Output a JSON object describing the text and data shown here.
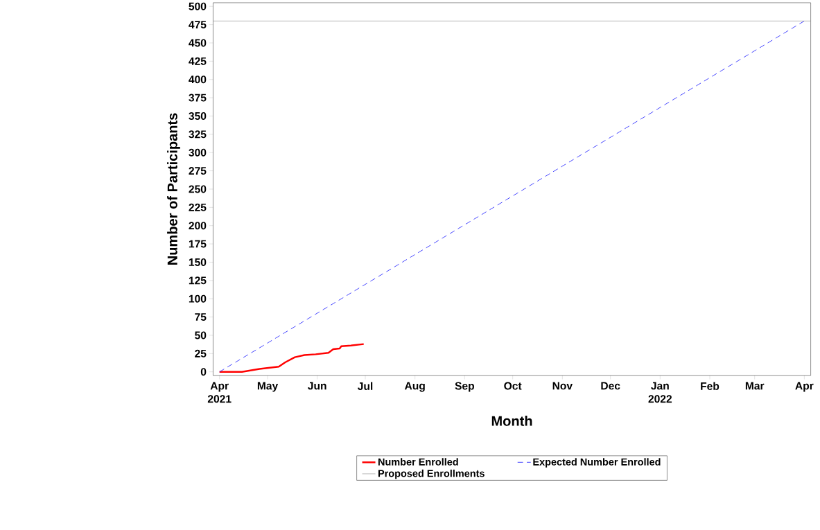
{
  "chart_data": {
    "type": "line",
    "xlabel": "Month",
    "ylabel": "Number of Participants",
    "xlim": [
      "2021-03-28",
      "2022-04-05"
    ],
    "ylim": [
      -5,
      505
    ],
    "xticks": [
      {
        "value": "2021-04-01",
        "label": "Apr 2021"
      },
      {
        "value": "2021-05-01",
        "label": "May"
      },
      {
        "value": "2021-06-01",
        "label": "Jun"
      },
      {
        "value": "2021-07-01",
        "label": "Jul"
      },
      {
        "value": "2021-08-01",
        "label": "Aug"
      },
      {
        "value": "2021-09-01",
        "label": "Sep"
      },
      {
        "value": "2021-10-01",
        "label": "Oct"
      },
      {
        "value": "2021-11-01",
        "label": "Nov"
      },
      {
        "value": "2021-12-01",
        "label": "Dec"
      },
      {
        "value": "2022-01-01",
        "label": "Jan 2022"
      },
      {
        "value": "2022-02-01",
        "label": "Feb"
      },
      {
        "value": "2022-03-01",
        "label": "Mar"
      },
      {
        "value": "2022-04-01",
        "label": "Apr"
      }
    ],
    "yticks": [
      0,
      25,
      50,
      75,
      100,
      125,
      150,
      175,
      200,
      225,
      250,
      275,
      300,
      325,
      350,
      375,
      400,
      425,
      450,
      475,
      500
    ],
    "grid": false,
    "legend": "bottom",
    "marker": "none",
    "series": [
      {
        "name": "Number Enrolled",
        "color": "#ff0000",
        "line_style": "solid",
        "x": [
          "2021-04-01",
          "2021-04-15",
          "2021-04-26",
          "2021-05-08",
          "2021-05-12",
          "2021-05-18",
          "2021-05-24",
          "2021-05-31",
          "2021-06-08",
          "2021-06-11",
          "2021-06-15",
          "2021-06-16",
          "2021-06-22",
          "2021-06-30"
        ],
        "values": [
          0,
          0,
          4,
          7,
          13,
          20,
          23,
          24,
          26,
          31,
          32,
          35,
          36,
          38
        ]
      },
      {
        "name": "Expected Number Enrolled",
        "color": "#3333ff",
        "line_style": "dashed",
        "x": [
          "2021-04-01",
          "2022-04-01"
        ],
        "values": [
          0,
          480
        ]
      }
    ],
    "ref_lines": [
      {
        "axis": "y",
        "value": 480,
        "label": "Proposed Enrollments",
        "color": "#808080",
        "line_style": "solid"
      }
    ]
  }
}
